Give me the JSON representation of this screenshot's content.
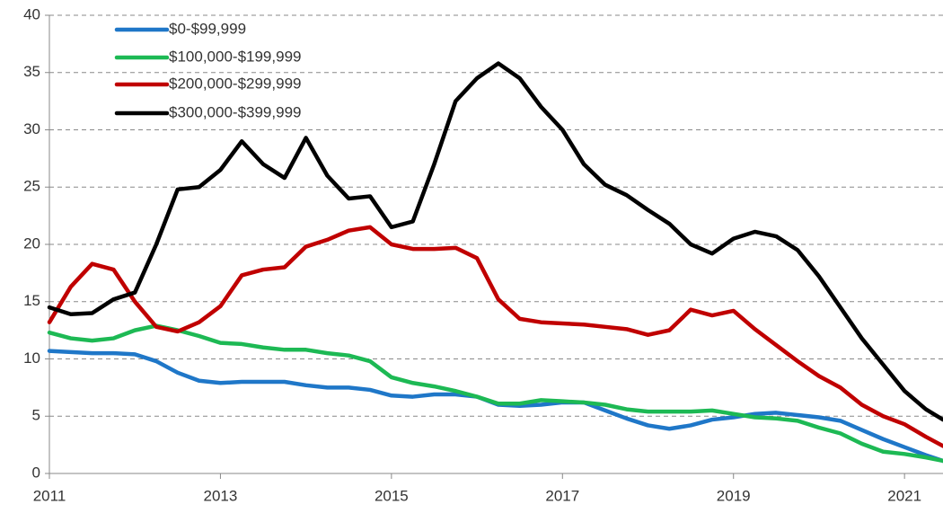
{
  "chart_data": {
    "type": "line",
    "x": [
      2011,
      2011.25,
      2011.5,
      2011.75,
      2012,
      2012.25,
      2012.5,
      2012.75,
      2013,
      2013.25,
      2013.5,
      2013.75,
      2014,
      2014.25,
      2014.5,
      2014.75,
      2015,
      2015.25,
      2015.5,
      2015.75,
      2016,
      2016.25,
      2016.5,
      2016.75,
      2017,
      2017.25,
      2017.5,
      2017.75,
      2018,
      2018.25,
      2018.5,
      2018.75,
      2019,
      2019.25,
      2019.5,
      2019.75,
      2020,
      2020.25,
      2020.5,
      2020.75,
      2021,
      2021.25,
      2021.45
    ],
    "series": [
      {
        "name": "$0-$99,999",
        "color": "#1f77c8",
        "values": [
          10.7,
          10.6,
          10.5,
          10.5,
          10.4,
          9.8,
          8.8,
          8.1,
          7.9,
          8,
          8,
          8,
          7.7,
          7.5,
          7.5,
          7.3,
          6.8,
          6.7,
          6.9,
          6.9,
          6.7,
          6,
          5.9,
          6,
          6.2,
          6.2,
          5.5,
          4.8,
          4.2,
          3.9,
          4.2,
          4.7,
          4.9,
          5.2,
          5.3,
          5.1,
          4.9,
          4.6,
          3.8,
          3,
          2.3,
          1.6,
          1.1
        ]
      },
      {
        "name": "$100,000-$199,999",
        "color": "#1db954",
        "values": [
          12.3,
          11.8,
          11.6,
          11.8,
          12.5,
          12.9,
          12.5,
          12,
          11.4,
          11.3,
          11,
          10.8,
          10.8,
          10.5,
          10.3,
          9.8,
          8.4,
          7.9,
          7.6,
          7.2,
          6.7,
          6.1,
          6.1,
          6.4,
          6.3,
          6.2,
          6,
          5.6,
          5.4,
          5.4,
          5.4,
          5.5,
          5.2,
          4.9,
          4.8,
          4.6,
          4,
          3.5,
          2.6,
          1.9,
          1.7,
          1.4,
          1.1
        ]
      },
      {
        "name": "$200,000-$299,999",
        "color": "#c00000",
        "values": [
          13.2,
          16.3,
          18.3,
          17.8,
          15,
          12.8,
          12.4,
          13.2,
          14.6,
          17.3,
          17.8,
          18,
          19.8,
          20.4,
          21.2,
          21.5,
          20,
          19.6,
          19.6,
          19.7,
          18.8,
          15.2,
          13.5,
          13.2,
          13.1,
          13,
          12.8,
          12.6,
          12.1,
          12.5,
          14.3,
          13.8,
          14.2,
          12.6,
          11.2,
          9.8,
          8.5,
          7.5,
          6,
          5,
          4.3,
          3.2,
          2.4
        ]
      },
      {
        "name": "$300,000-$399,999",
        "color": "#000000",
        "values": [
          14.5,
          13.9,
          14,
          15.2,
          15.8,
          20,
          24.8,
          25,
          26.5,
          29,
          27,
          25.8,
          29.3,
          26,
          24,
          24.2,
          21.5,
          22,
          27,
          32.5,
          34.5,
          35.8,
          34.5,
          32,
          30,
          27,
          25.2,
          24.3,
          23,
          21.8,
          20,
          19.2,
          20.5,
          21.1,
          20.7,
          19.5,
          17.2,
          14.5,
          11.8,
          9.5,
          7.2,
          5.6,
          4.7
        ]
      }
    ],
    "xlim": [
      2011,
      2021.45
    ],
    "xticks": [
      2011,
      2013,
      2015,
      2017,
      2019,
      2021
    ],
    "ylim": [
      0,
      40
    ],
    "yticks": [
      0,
      5,
      10,
      15,
      20,
      25,
      30,
      35,
      40
    ],
    "grid": true,
    "legend": "top-left"
  }
}
